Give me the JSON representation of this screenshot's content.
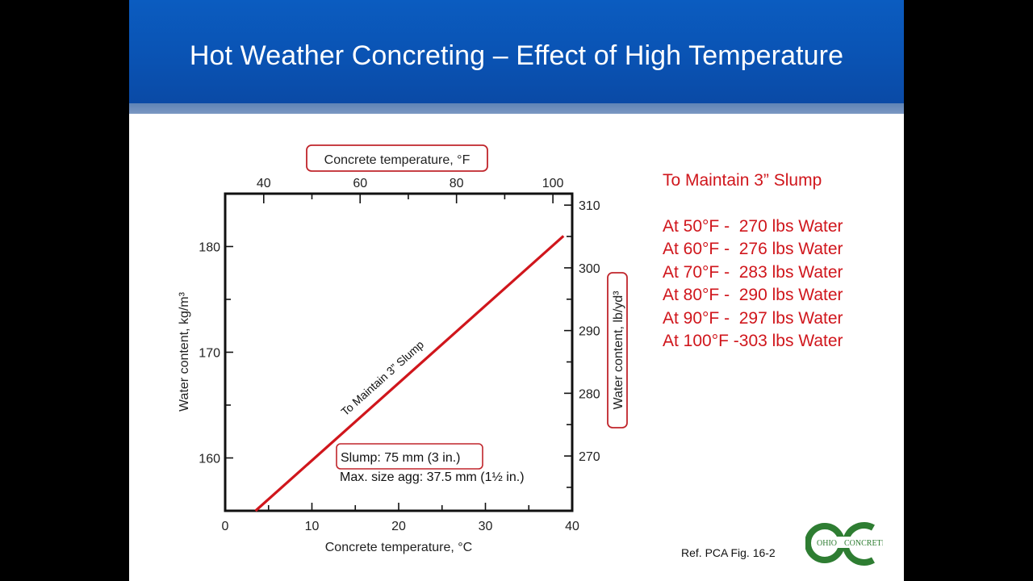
{
  "slide": {
    "title": "Hot Weather Concreting – Effect of High Temperature",
    "info_heading": "To Maintain 3” Slump",
    "info_lines": [
      "At 50°F -  270 lbs Water",
      "At 60°F -  276 lbs Water",
      "At 70°F -  283 lbs Water",
      "At 80°F -  290 lbs Water",
      "At 90°F -  297 lbs Water",
      "At 100°F -303 lbs Water"
    ],
    "reference": "Ref. PCA Fig. 16-2",
    "logo": {
      "left_text": "OHIO",
      "right_text": "CONCRETE",
      "color": "#2e7d32"
    },
    "header_color": "#0b55b8",
    "accent_color": "#d0161c"
  },
  "chart_data": {
    "type": "line",
    "xlabel_bottom": "Concrete temperature, °C",
    "xlabel_top": "Concrete temperature, °F",
    "ylabel_left": "Water content, kg/m³",
    "ylabel_right": "Water content, lb/yd³",
    "x_range_c": [
      0,
      40
    ],
    "x_ticks_c": [
      0,
      10,
      20,
      30,
      40
    ],
    "x_ticks_f": [
      40,
      60,
      80,
      100
    ],
    "y_range_kg": [
      155,
      185
    ],
    "y_ticks_kg": [
      160,
      170,
      180
    ],
    "y_ticks_lb": [
      270,
      280,
      290,
      300,
      310
    ],
    "series": [
      {
        "x": [
          3.5,
          39
        ],
        "y": [
          155,
          181
        ],
        "color": "#d0161c"
      }
    ],
    "line_label": "To Maintain 3” Slump",
    "note_boxed": "Slump: 75 mm (3 in.)",
    "note_sub": "Max. size agg: 37.5 mm (1½ in.)",
    "grid": false
  }
}
